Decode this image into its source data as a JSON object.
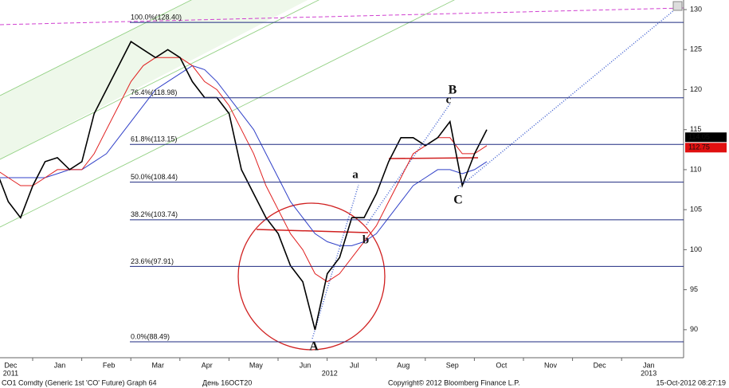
{
  "chart_data": {
    "type": "line",
    "categories": [
      null,
      "Dec",
      null,
      null,
      null,
      "Jan",
      null,
      null,
      null,
      "Feb",
      null,
      null,
      null,
      "Mar",
      null,
      null,
      null,
      "Apr",
      null,
      null,
      null,
      "May",
      null,
      null,
      null,
      "Jun",
      null,
      null,
      null,
      "Jul",
      null,
      null,
      null,
      "Aug",
      null,
      null,
      null,
      "Sep",
      null,
      null,
      null,
      "Oct",
      null,
      null,
      null,
      "Nov",
      null,
      null,
      null,
      "Dec",
      null,
      null,
      null,
      "Jan",
      null,
      null
    ],
    "years": [
      "2011",
      "2012",
      "2013"
    ],
    "series": [
      {
        "color": "#000000",
        "values": [
          110,
          106,
          104,
          108,
          111,
          111.5,
          110,
          111,
          117,
          120,
          123,
          126,
          125,
          124,
          125,
          124,
          121,
          119,
          119,
          117,
          110,
          107,
          104,
          102,
          98,
          96,
          90,
          97,
          99,
          104,
          104,
          107,
          111,
          114,
          114,
          113,
          114,
          116,
          108,
          112,
          115,
          null,
          null,
          null,
          null,
          null,
          null,
          null,
          null,
          null,
          null,
          null,
          null,
          null,
          null,
          null
        ]
      },
      {
        "color": "#e02020",
        "values": [
          110,
          109,
          108,
          108,
          109,
          110,
          110,
          110,
          112,
          115,
          118,
          121,
          123,
          124,
          124,
          124,
          123,
          121,
          120,
          118,
          115,
          112,
          108,
          105,
          102,
          100,
          97,
          96,
          97,
          99,
          101,
          103,
          106,
          109,
          112,
          113,
          114,
          114,
          112,
          112,
          113,
          null,
          null,
          null,
          null,
          null,
          null,
          null,
          null,
          null,
          null,
          null,
          null,
          null,
          null,
          null
        ]
      },
      {
        "color": "#3040c8",
        "values": [
          109,
          109,
          109,
          109,
          109,
          109.5,
          110,
          110,
          111,
          112,
          114,
          116,
          118,
          120,
          121,
          122,
          123,
          122.5,
          121,
          119,
          117,
          115,
          112,
          109,
          106,
          104,
          102,
          101,
          100.5,
          100.5,
          101,
          102,
          104,
          106,
          108,
          109,
          110,
          110,
          109.5,
          110,
          111,
          null,
          null,
          null,
          null,
          null,
          null,
          null,
          null,
          null,
          null,
          null,
          null,
          null,
          null,
          null
        ]
      }
    ],
    "fib_levels": [
      {
        "value": 128.4,
        "label": "100.0%(128.40)"
      },
      {
        "value": 118.98,
        "label": "76.4%(118.98)"
      },
      {
        "value": 113.15,
        "label": "61.8%(113.15)"
      },
      {
        "value": 108.44,
        "label": "50.0%(108.44)"
      },
      {
        "value": 103.74,
        "label": "38.2%(103.74)"
      },
      {
        "value": 97.91,
        "label": "23.6%(97.91)"
      },
      {
        "value": 88.49,
        "label": "0.0%(88.49)"
      }
    ],
    "annotations_red": [
      "A",
      "B",
      "C"
    ],
    "annotations_blue": [
      "a",
      "b",
      "c"
    ],
    "last_price": 114.05,
    "ma_price": 112.75,
    "ylim": [
      86.7,
      130.9
    ],
    "yticks": [
      90,
      95,
      100,
      105,
      110,
      115,
      120,
      125,
      130
    ]
  },
  "footer": {
    "security": "CO1 Comdty (Generic 1st 'CO' Future)  Graph 64",
    "day": "День 16OCT20",
    "copyright": "Copyright© 2012 Bloomberg Finance L.P.",
    "timestamp": "15-Oct-2012 08:27:19"
  }
}
